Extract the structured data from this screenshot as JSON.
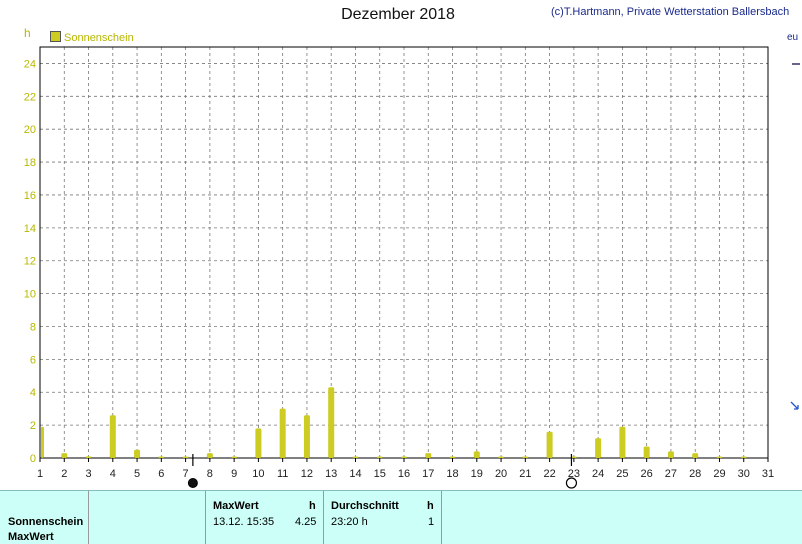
{
  "chart_data": {
    "type": "bar",
    "title": "Dezember 2018",
    "credit": "(c)T.Hartmann, Private Wetterstation Ballersbach",
    "ylabel": "h",
    "ylim": [
      0,
      25
    ],
    "yticks": [
      0,
      2,
      4,
      6,
      8,
      10,
      12,
      14,
      16,
      18,
      20,
      22,
      24
    ],
    "categories": [
      "1",
      "2",
      "3",
      "4",
      "5",
      "6",
      "7",
      "8",
      "9",
      "10",
      "11",
      "12",
      "13",
      "14",
      "15",
      "16",
      "17",
      "18",
      "19",
      "20",
      "21",
      "22",
      "23",
      "24",
      "25",
      "26",
      "27",
      "28",
      "29",
      "30",
      "31"
    ],
    "series": [
      {
        "name": "Sonnenschein",
        "color": "#cccc22",
        "values": [
          1.9,
          0.3,
          0.1,
          2.6,
          0.5,
          0.05,
          0.05,
          0.3,
          0.05,
          1.8,
          3.0,
          2.6,
          4.3,
          0.05,
          0.05,
          0.05,
          0.3,
          0.05,
          0.4,
          0.05,
          0.05,
          1.6,
          0.05,
          1.2,
          1.9,
          0.7,
          0.4,
          0.3,
          0.05,
          0.05,
          0
        ]
      }
    ],
    "grid": true,
    "legend": "top-left",
    "moon_phases": [
      {
        "day": 7.3,
        "phase": "new-moon"
      },
      {
        "day": 22.9,
        "phase": "full-moon"
      }
    ]
  },
  "side_labels": {
    "top": "eu",
    "mid": ""
  },
  "summary": {
    "row1_label": "Sonnenschein",
    "row2_label": "MaxWert",
    "max_header": "MaxWert",
    "max_unit": "h",
    "max_datetime": "13.12.  15:35",
    "max_value": "4.25",
    "avg_header": "Durchschnitt",
    "avg_unit": "h",
    "avg_value": "23:20 h",
    "avg_count": "1"
  }
}
